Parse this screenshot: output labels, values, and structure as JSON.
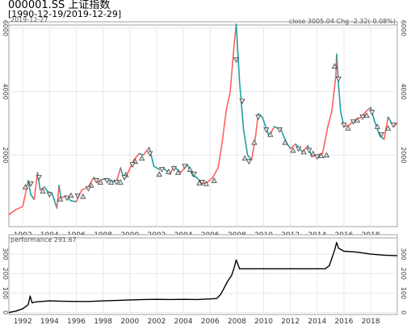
{
  "header": {
    "title": "000001.SS 上证指数",
    "range": "[1990-12-19/2019-12-29]"
  },
  "colors": {
    "up": "#ff6060",
    "down": "#20a0a0",
    "grid": "#e8e8e8",
    "frame": "#a0a0a0",
    "perf_line": "#000000"
  },
  "chart_data": [
    {
      "type": "line",
      "name": "price-panel",
      "title": "2019-12-27",
      "legend": "close 3005.04 Chg -2.32(-0.08%)",
      "legend_position": "top-right",
      "xlabel": "",
      "ylabel": "",
      "x_ticks": [
        "1992",
        "1994",
        "1996",
        "1998",
        "2000",
        "2002",
        "2004",
        "2006",
        "2008",
        "2010",
        "2012",
        "2014",
        "2016",
        "2018"
      ],
      "y_ticks": [
        2000,
        4000,
        6000
      ],
      "xlim": [
        1990.96,
        2019.99
      ],
      "ylim": [
        -250,
        6200
      ],
      "grid": true,
      "series": [
        {
          "x": [
            1990.96,
            1991.5,
            1992.0,
            1992.4,
            1992.6,
            1992.85,
            1993.1,
            1993.3,
            1993.6,
            1993.85,
            1994.2,
            1994.55,
            1994.7,
            1994.85,
            1995.2,
            1995.6,
            1996.0,
            1996.4,
            1996.9,
            1997.3,
            1997.6,
            1998.0,
            1998.5,
            1999.0,
            1999.3,
            1999.5,
            1999.8,
            2000.3,
            2000.7,
            2001.0,
            2001.45,
            2001.8,
            2002.2,
            2002.5,
            2003.0,
            2003.3,
            2003.8,
            2004.3,
            2004.7,
            2005.0,
            2005.4,
            2005.8,
            2006.2,
            2006.6,
            2006.9,
            2007.2,
            2007.5,
            2007.8,
            2007.95,
            2008.2,
            2008.5,
            2008.8,
            2009.1,
            2009.4,
            2009.6,
            2009.9,
            2010.4,
            2010.8,
            2011.3,
            2011.7,
            2012.0,
            2012.4,
            2012.9,
            2013.3,
            2013.6,
            2014.0,
            2014.4,
            2014.8,
            2015.1,
            2015.4,
            2015.45,
            2015.6,
            2015.75,
            2016.0,
            2016.4,
            2016.8,
            2017.3,
            2017.7,
            2018.0,
            2018.3,
            2018.7,
            2019.0,
            2019.3,
            2019.7,
            2019.99
          ],
          "values": [
            127,
            290,
            380,
            1200,
            760,
            600,
            1450,
            900,
            1000,
            860,
            780,
            330,
            1050,
            650,
            720,
            560,
            540,
            900,
            1000,
            1300,
            1150,
            1250,
            1200,
            1150,
            1600,
            1350,
            1400,
            1850,
            2050,
            2000,
            2245,
            1650,
            1550,
            1600,
            1400,
            1650,
            1450,
            1700,
            1350,
            1300,
            1100,
            1150,
            1300,
            1600,
            2400,
            3400,
            4000,
            5500,
            6124,
            4300,
            2800,
            2000,
            1850,
            2600,
            3300,
            3200,
            2600,
            2900,
            2800,
            2400,
            2200,
            2350,
            2100,
            2300,
            1950,
            2000,
            2050,
            2900,
            3400,
            4500,
            5178,
            4200,
            3400,
            2900,
            2950,
            3100,
            3200,
            3400,
            3500,
            3050,
            2600,
            2500,
            3200,
            2900,
            3005
          ]
        }
      ]
    },
    {
      "type": "line",
      "name": "performance-panel",
      "title": "performance 291.67",
      "x_ticks": [
        "1992",
        "1994",
        "1996",
        "1998",
        "2000",
        "2002",
        "2004",
        "2006",
        "2008",
        "2010",
        "2012",
        "2014",
        "2016",
        "2018"
      ],
      "y_ticks": [
        0,
        100,
        200,
        300
      ],
      "xlim": [
        1990.96,
        2019.99
      ],
      "ylim": [
        -10,
        400
      ],
      "grid": true,
      "series": [
        {
          "x": [
            1990.96,
            1991.5,
            1992.0,
            1992.4,
            1992.55,
            1992.7,
            1993.0,
            1994.0,
            1995.0,
            1996.0,
            1997.0,
            1998.0,
            1999.0,
            2000.0,
            2001.0,
            2002.0,
            2003.0,
            2004.0,
            2005.0,
            2006.0,
            2006.5,
            2006.8,
            2007.0,
            2007.3,
            2007.6,
            2007.8,
            2007.95,
            2008.2,
            2009.0,
            2010.0,
            2011.0,
            2012.0,
            2013.0,
            2014.0,
            2014.6,
            2014.9,
            2015.1,
            2015.3,
            2015.45,
            2015.6,
            2016.0,
            2017.0,
            2018.0,
            2019.0,
            2019.99
          ],
          "values": [
            0,
            8,
            20,
            40,
            85,
            50,
            55,
            60,
            58,
            57,
            57,
            60,
            62,
            65,
            67,
            68,
            67,
            68,
            67,
            70,
            72,
            95,
            120,
            160,
            190,
            230,
            270,
            225,
            225,
            225,
            225,
            225,
            225,
            225,
            225,
            240,
            280,
            320,
            360,
            330,
            315,
            310,
            300,
            295,
            292
          ]
        }
      ]
    }
  ],
  "markers": {
    "buy": [
      [
        1992.2,
        1000
      ],
      [
        1993.5,
        870
      ],
      [
        1994.8,
        620
      ],
      [
        1995.6,
        730
      ],
      [
        1996.5,
        700
      ],
      [
        1997.1,
        1050
      ],
      [
        1997.8,
        1150
      ],
      [
        1998.6,
        1150
      ],
      [
        1999.3,
        1150
      ],
      [
        1999.7,
        1380
      ],
      [
        2000.4,
        1800
      ],
      [
        2000.9,
        1900
      ],
      [
        2002.2,
        1400
      ],
      [
        2002.9,
        1480
      ],
      [
        2003.6,
        1450
      ],
      [
        2004.5,
        1550
      ],
      [
        2005.2,
        1120
      ],
      [
        2005.7,
        1100
      ],
      [
        2006.3,
        1200
      ],
      [
        2008.6,
        1900
      ],
      [
        2009.3,
        2400
      ],
      [
        2010.5,
        2650
      ],
      [
        2011.6,
        2400
      ],
      [
        2012.2,
        2150
      ],
      [
        2013.0,
        2100
      ],
      [
        2013.7,
        2050
      ],
      [
        2014.3,
        1980
      ],
      [
        2014.7,
        2000
      ],
      [
        2015.3,
        4800
      ],
      [
        2016.3,
        2850
      ],
      [
        2017.0,
        3100
      ],
      [
        2017.7,
        3250
      ],
      [
        2018.5,
        2900
      ],
      [
        2019.3,
        2850
      ]
    ],
    "sell": [
      [
        1992.6,
        1100
      ],
      [
        1993.2,
        1300
      ],
      [
        1994.0,
        760
      ],
      [
        1995.3,
        650
      ],
      [
        1996.1,
        720
      ],
      [
        1996.9,
        950
      ],
      [
        1997.5,
        1200
      ],
      [
        1998.3,
        1200
      ],
      [
        1999.0,
        1150
      ],
      [
        1999.6,
        1300
      ],
      [
        2000.2,
        1700
      ],
      [
        2001.5,
        2050
      ],
      [
        2002.4,
        1550
      ],
      [
        2003.3,
        1580
      ],
      [
        2004.1,
        1650
      ],
      [
        2004.8,
        1400
      ],
      [
        2005.4,
        1150
      ],
      [
        2007.95,
        5000
      ],
      [
        2008.4,
        3700
      ],
      [
        2008.9,
        1800
      ],
      [
        2009.6,
        3200
      ],
      [
        2010.2,
        2800
      ],
      [
        2011.2,
        2800
      ],
      [
        2012.6,
        2200
      ],
      [
        2013.4,
        2150
      ],
      [
        2014.0,
        1950
      ],
      [
        2015.6,
        4400
      ],
      [
        2016.0,
        2950
      ],
      [
        2016.7,
        3050
      ],
      [
        2017.4,
        3200
      ],
      [
        2018.1,
        3350
      ],
      [
        2018.8,
        2650
      ],
      [
        2019.7,
        2950
      ]
    ]
  }
}
